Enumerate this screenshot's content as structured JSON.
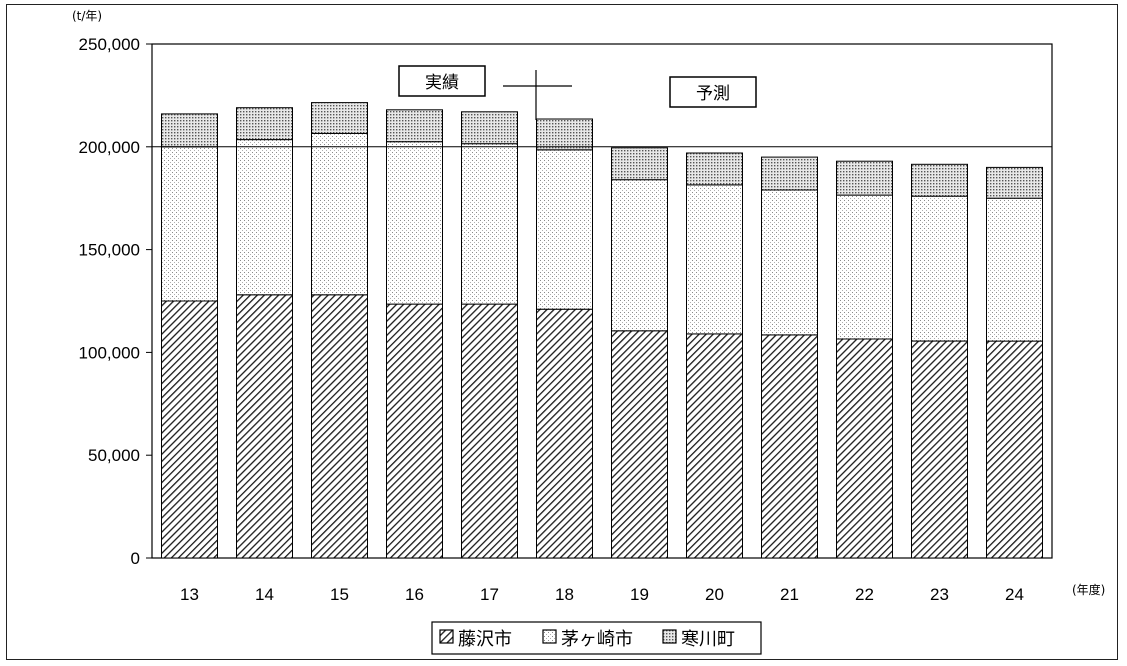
{
  "chart_data": {
    "type": "bar",
    "stacked": true,
    "y_unit": "(t/年)",
    "x_unit": "(年度)",
    "categories": [
      "13",
      "14",
      "15",
      "16",
      "17",
      "18",
      "19",
      "20",
      "21",
      "22",
      "23",
      "24"
    ],
    "series": [
      {
        "name": "藤沢市",
        "values": [
          125000,
          128000,
          128000,
          123500,
          123500,
          121000,
          110500,
          109000,
          108500,
          106500,
          105500,
          105500
        ],
        "pattern": "diagonal-hatch"
      },
      {
        "name": "茅ヶ崎市",
        "values": [
          75000,
          75500,
          78500,
          79000,
          78000,
          77500,
          73500,
          72500,
          70500,
          70000,
          70500,
          69500
        ],
        "pattern": "light-dots"
      },
      {
        "name": "寒川町",
        "values": [
          16000,
          15500,
          15000,
          15500,
          15500,
          15000,
          15500,
          15500,
          16000,
          16500,
          15500,
          15000
        ],
        "pattern": "grid-dots"
      }
    ],
    "ylim": [
      0,
      250000
    ],
    "yticks": [
      "0",
      "50,000",
      "100,000",
      "150,000",
      "200,000",
      "250,000"
    ],
    "ytick_values": [
      0,
      50000,
      100000,
      150000,
      200000,
      250000
    ],
    "reference_line": 200000,
    "annotations": {
      "actual": "実績",
      "forecast": "予測"
    },
    "legend_placement": "bottom",
    "grid": false
  }
}
